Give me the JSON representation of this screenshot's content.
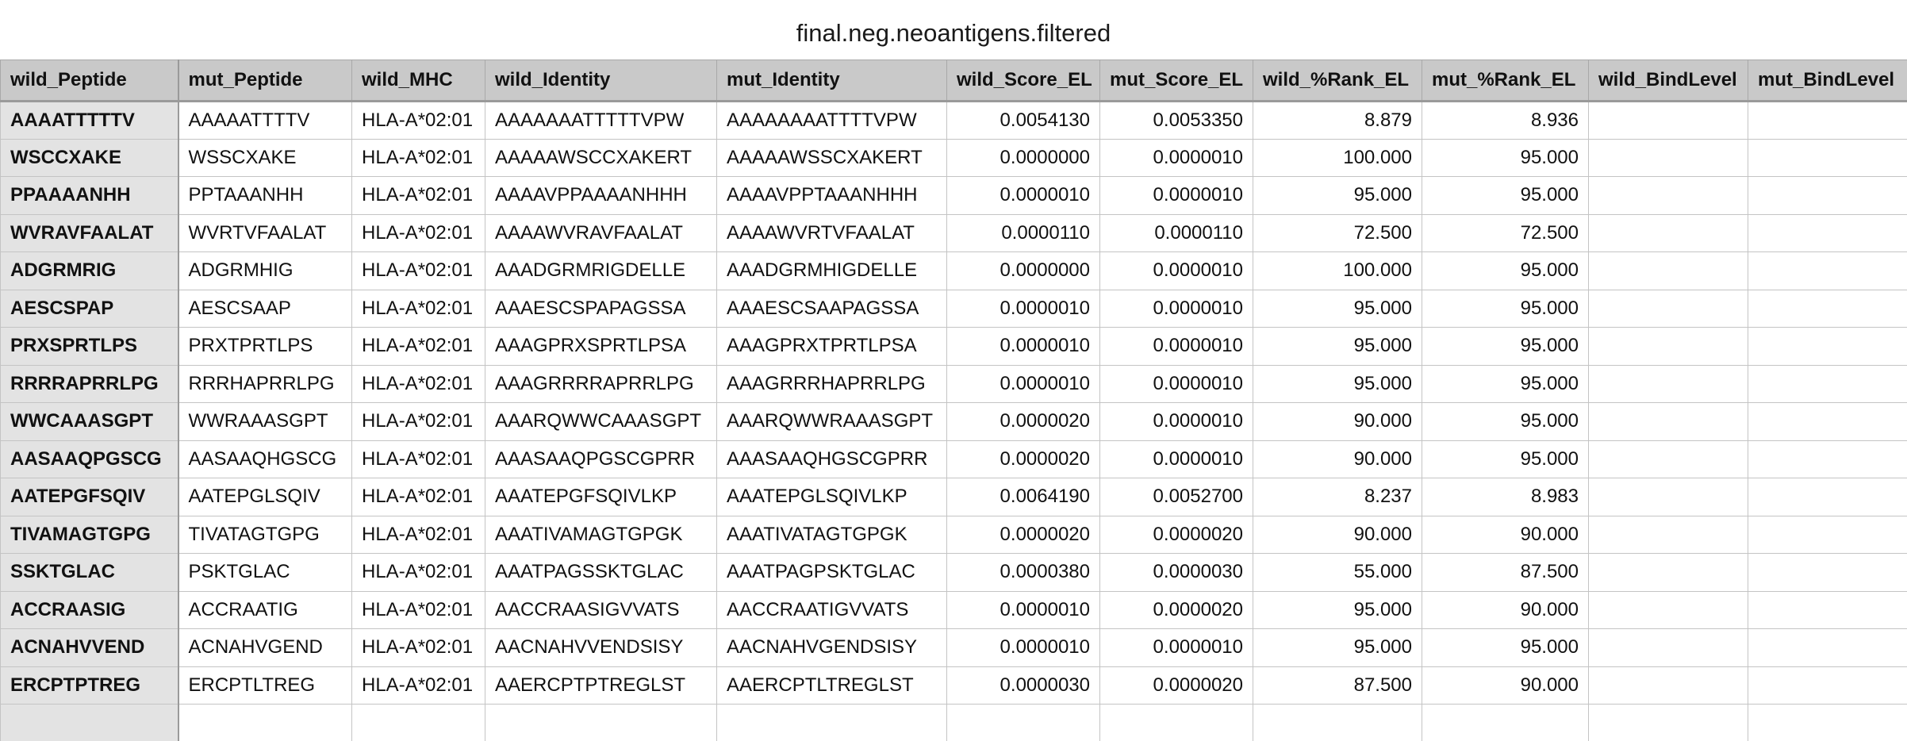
{
  "sheet": {
    "title": "final.neg.neoantigens.filtered"
  },
  "columns": [
    "wild_Peptide",
    "mut_Peptide",
    "wild_MHC",
    "wild_Identity",
    "mut_Identity",
    "wild_Score_EL",
    "mut_Score_EL",
    "wild_%Rank_EL",
    "mut_%Rank_EL",
    "wild_BindLevel",
    "mut_BindLevel"
  ],
  "rows": [
    [
      "AAAATTTTTV",
      "AAAAATTTTV",
      "HLA-A*02:01",
      "AAAAAAATTTTTVPW",
      "AAAAAAAATTTTVPW",
      "0.0054130",
      "0.0053350",
      "8.879",
      "8.936",
      "",
      ""
    ],
    [
      "WSCCXAKE",
      "WSSCXAKE",
      "HLA-A*02:01",
      "AAAAAWSCCXAKERT",
      "AAAAAWSSCXAKERT",
      "0.0000000",
      "0.0000010",
      "100.000",
      "95.000",
      "",
      ""
    ],
    [
      "PPAAAANHH",
      "PPTAAANHH",
      "HLA-A*02:01",
      "AAAAVPPAAAANHHH",
      "AAAAVPPTAAANHHH",
      "0.0000010",
      "0.0000010",
      "95.000",
      "95.000",
      "",
      ""
    ],
    [
      "WVRAVFAALAT",
      "WVRTVFAALAT",
      "HLA-A*02:01",
      "AAAAWVRAVFAALAT",
      "AAAAWVRTVFAALAT",
      "0.0000110",
      "0.0000110",
      "72.500",
      "72.500",
      "",
      ""
    ],
    [
      "ADGRMRIG",
      "ADGRMHIG",
      "HLA-A*02:01",
      "AAADGRMRIGDELLE",
      "AAADGRMHIGDELLE",
      "0.0000000",
      "0.0000010",
      "100.000",
      "95.000",
      "",
      ""
    ],
    [
      "AESCSPAP",
      "AESCSAAP",
      "HLA-A*02:01",
      "AAAESCSPAPAGSSA",
      "AAAESCSAAPAGSSA",
      "0.0000010",
      "0.0000010",
      "95.000",
      "95.000",
      "",
      ""
    ],
    [
      "PRXSPRTLPS",
      "PRXTPRTLPS",
      "HLA-A*02:01",
      "AAAGPRXSPRTLPSA",
      "AAAGPRXTPRTLPSA",
      "0.0000010",
      "0.0000010",
      "95.000",
      "95.000",
      "",
      ""
    ],
    [
      "RRRRAPRRLPG",
      "RRRHAPRRLPG",
      "HLA-A*02:01",
      "AAAGRRRRAPRRLPG",
      "AAAGRRRHAPRRLPG",
      "0.0000010",
      "0.0000010",
      "95.000",
      "95.000",
      "",
      ""
    ],
    [
      "WWCAAASGPT",
      "WWRAAASGPT",
      "HLA-A*02:01",
      "AAARQWWCAAASGPT",
      "AAARQWWRAAASGPT",
      "0.0000020",
      "0.0000010",
      "90.000",
      "95.000",
      "",
      ""
    ],
    [
      "AASAAQPGSCG",
      "AASAAQHGSCG",
      "HLA-A*02:01",
      "AAASAAQPGSCGPRR",
      "AAASAAQHGSCGPRR",
      "0.0000020",
      "0.0000010",
      "90.000",
      "95.000",
      "",
      ""
    ],
    [
      "AATEPGFSQIV",
      "AATEPGLSQIV",
      "HLA-A*02:01",
      "AAATEPGFSQIVLKP",
      "AAATEPGLSQIVLKP",
      "0.0064190",
      "0.0052700",
      "8.237",
      "8.983",
      "",
      ""
    ],
    [
      "TIVAMAGTGPG",
      "TIVATAGTGPG",
      "HLA-A*02:01",
      "AAATIVAMAGTGPGK",
      "AAATIVATAGTGPGK",
      "0.0000020",
      "0.0000020",
      "90.000",
      "90.000",
      "",
      ""
    ],
    [
      "SSKTGLAC",
      "PSKTGLAC",
      "HLA-A*02:01",
      "AAATPAGSSKTGLAC",
      "AAATPAGPSKTGLAC",
      "0.0000380",
      "0.0000030",
      "55.000",
      "87.500",
      "",
      ""
    ],
    [
      "ACCRAASIG",
      "ACCRAATIG",
      "HLA-A*02:01",
      "AACCRAASIGVVATS",
      "AACCRAATIGVVATS",
      "0.0000010",
      "0.0000020",
      "95.000",
      "90.000",
      "",
      ""
    ],
    [
      "ACNAHVVEND",
      "ACNAHVGEND",
      "HLA-A*02:01",
      "AACNAHVVENDSISY",
      "AACNAHVGENDSISY",
      "0.0000010",
      "0.0000010",
      "95.000",
      "95.000",
      "",
      ""
    ],
    [
      "ERCPTPTREG",
      "ERCPTLTREG",
      "HLA-A*02:01",
      "AAERCPTPTREGLST",
      "AAERCPTLTREGLST",
      "0.0000030",
      "0.0000020",
      "87.500",
      "90.000",
      "",
      ""
    ],
    [
      "",
      "",
      "",
      "",
      "",
      "",
      "",
      "",
      "",
      "",
      ""
    ]
  ]
}
